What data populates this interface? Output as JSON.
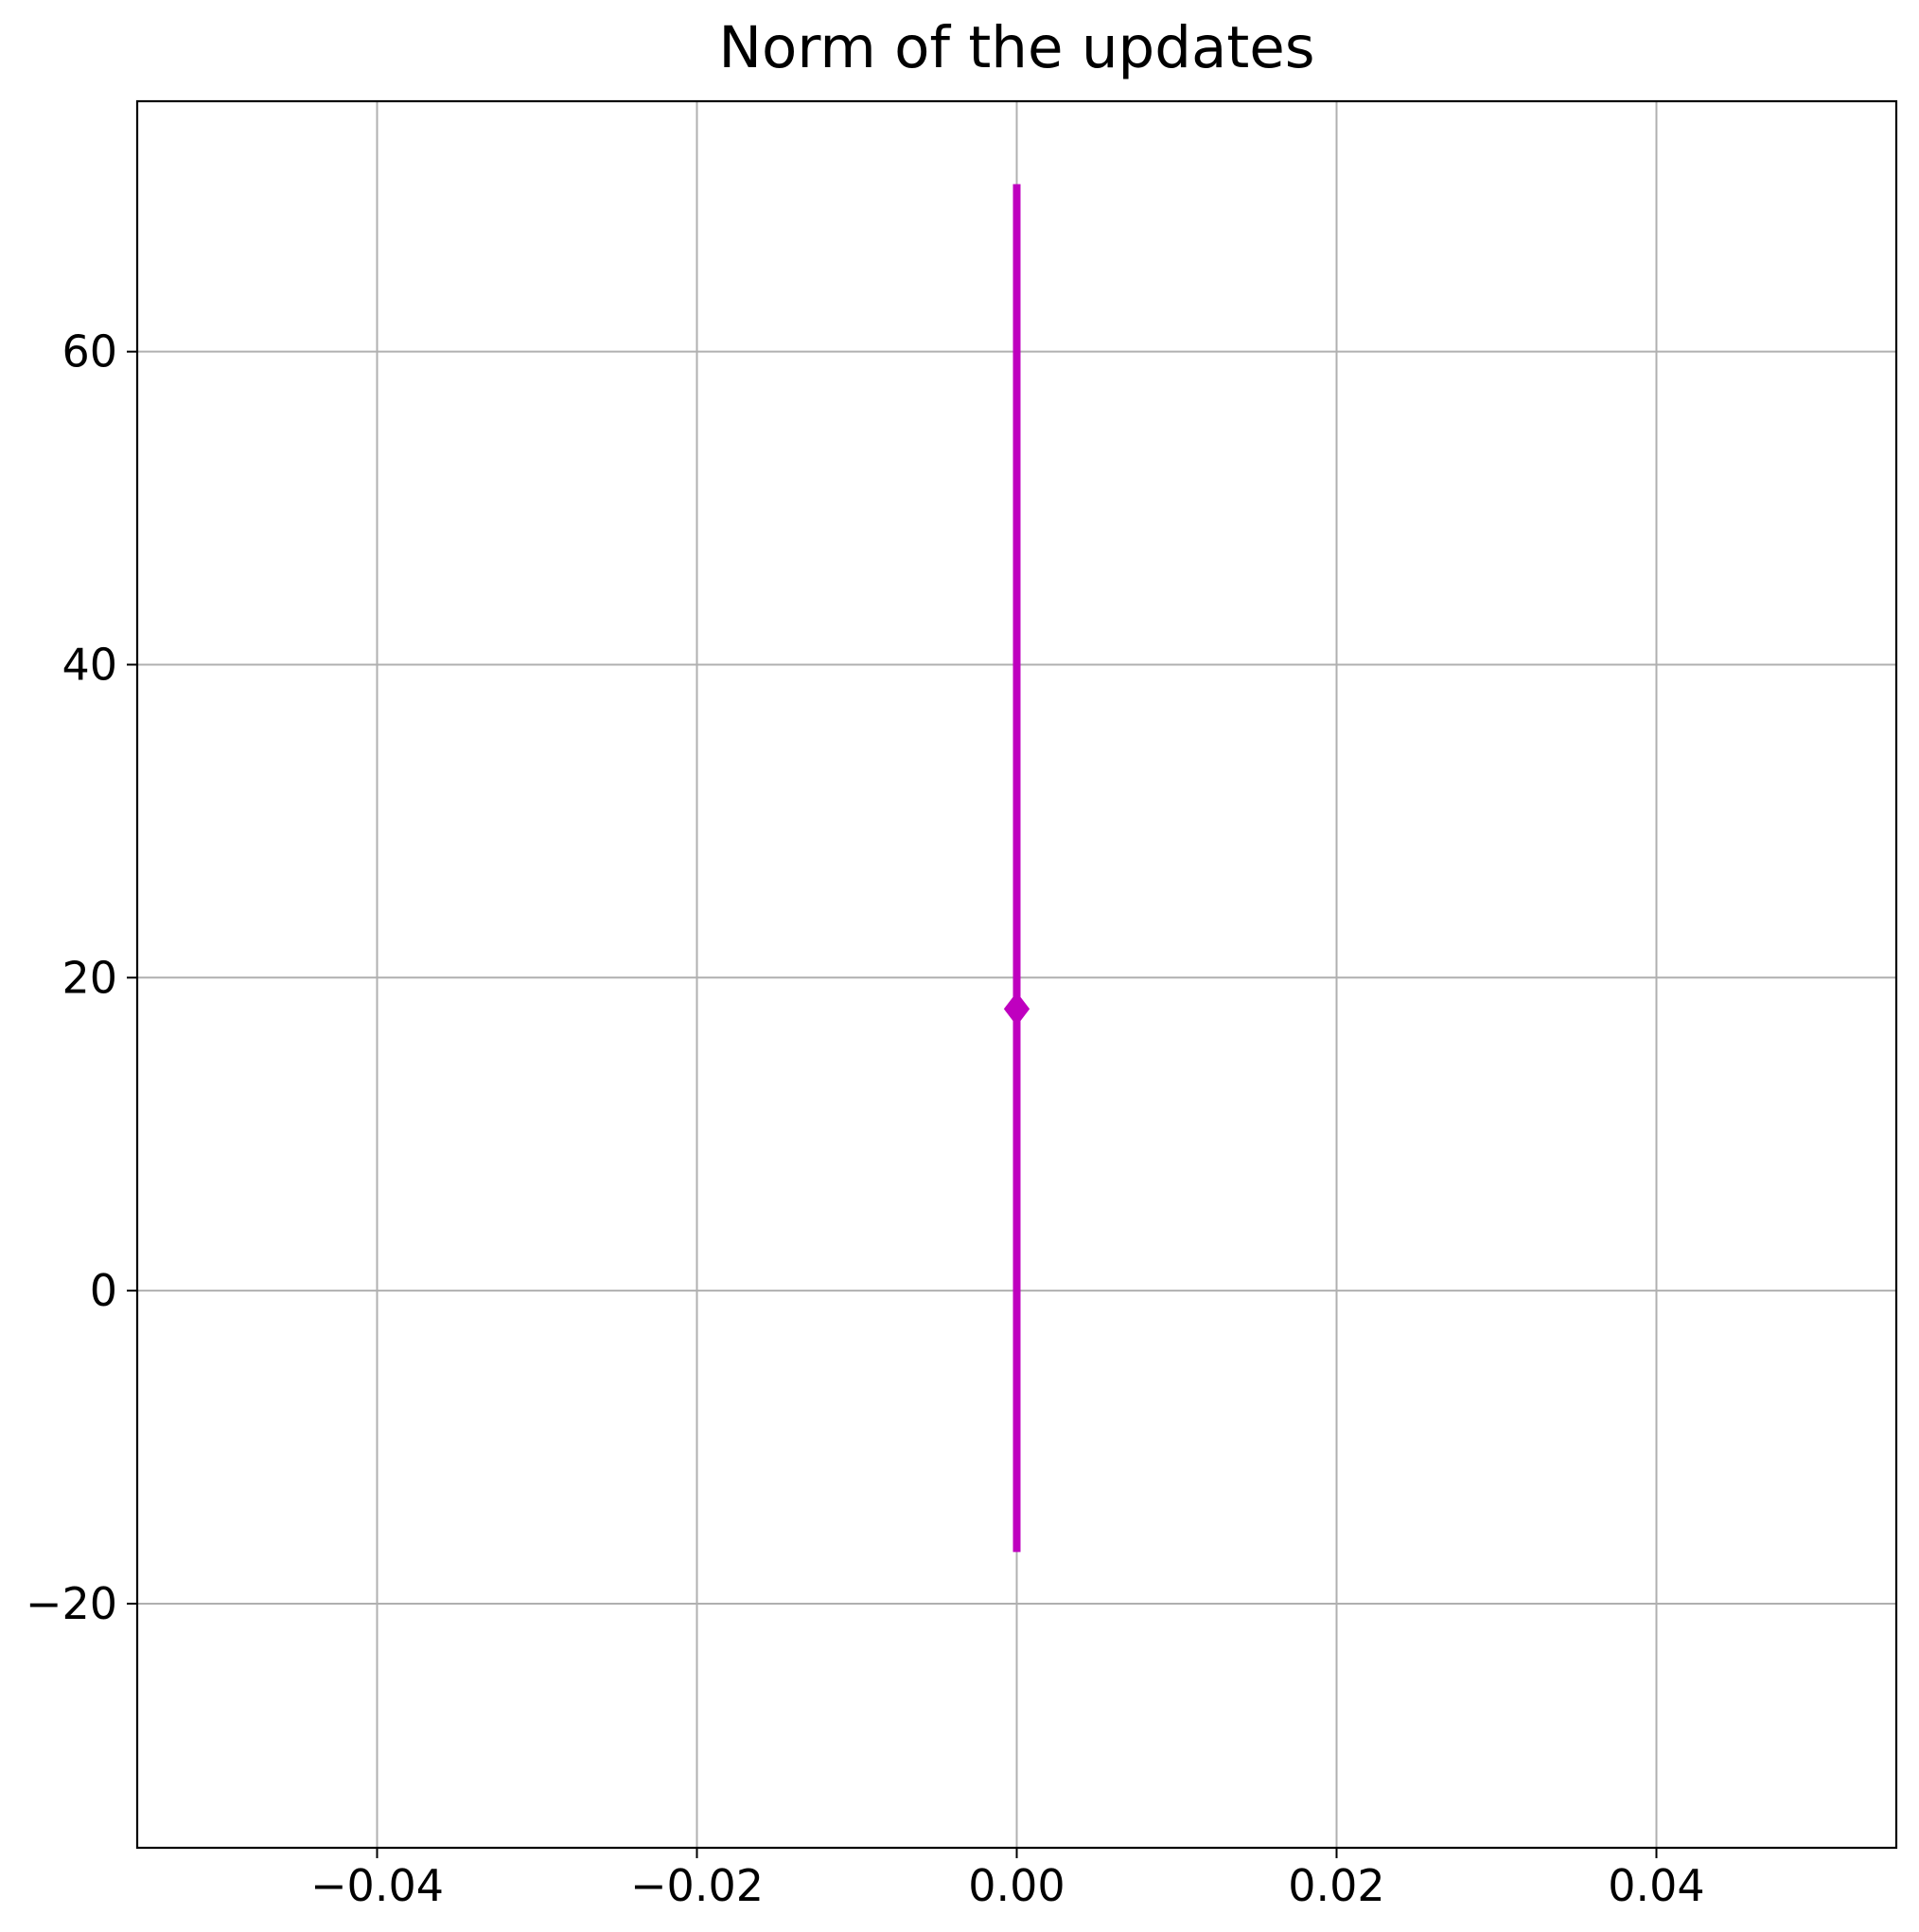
{
  "chart_data": {
    "type": "scatter",
    "title": "Norm of the updates",
    "xlabel": "",
    "ylabel": "",
    "xlim": [
      -0.055,
      0.055
    ],
    "ylim": [
      -35.6,
      76.0
    ],
    "grid": true,
    "x_ticks": [
      -0.04,
      -0.02,
      0.0,
      0.02,
      0.04
    ],
    "x_tick_labels": [
      "−0.04",
      "−0.02",
      "0.00",
      "0.02",
      "0.04"
    ],
    "y_ticks": [
      -20,
      0,
      20,
      40,
      60
    ],
    "y_tick_labels": [
      "−20",
      "0",
      "20",
      "40",
      "60"
    ],
    "series": [
      {
        "marker": "diamond",
        "color": "#bf00bf",
        "points": [
          {
            "x": 0.0,
            "y": 18.0,
            "y_err_low": 34.7,
            "y_err_high": 52.7
          }
        ]
      }
    ]
  }
}
